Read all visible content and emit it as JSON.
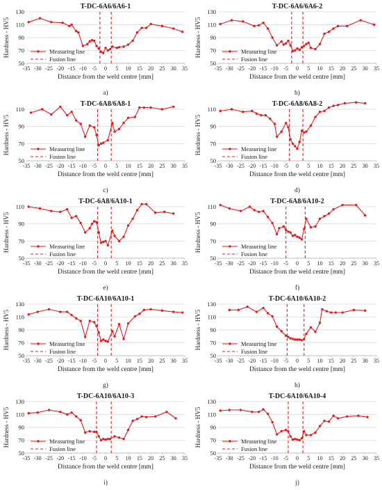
{
  "colors": {
    "series": "#e31a1c",
    "grid": "#d9d9d9",
    "axis": "#bfbfbf",
    "text": "#1a1a1a"
  },
  "common": {
    "ylabel": "Hardness - HV5",
    "xlabel": "Distance from the weld centre [mm]",
    "legend_measuring": "Measuring line",
    "legend_fusion": "Fusion line",
    "legend_placement": "bottom-left"
  },
  "chart_data": [
    {
      "type": "line",
      "title": "T-DC-6A6/6A6-1",
      "caption": "a)",
      "xlim": [
        -35,
        35
      ],
      "ylim": [
        50,
        130
      ],
      "xticks": [
        "-35",
        "-30",
        "-25",
        "-20",
        "-15",
        "-10",
        "-5",
        "0",
        "5",
        "10",
        "15",
        "20",
        "25",
        "30",
        "35"
      ],
      "yticks": [
        "50",
        "70",
        "90",
        "110",
        "130"
      ],
      "fusion_lines": [
        -2.5,
        2.5
      ],
      "grid": true,
      "series": [
        {
          "name": "Measuring line",
          "x": [
            -34,
            -29,
            -24,
            -19,
            -16,
            -15,
            -13,
            -12,
            -10,
            -8,
            -7,
            -6,
            -5,
            -4,
            -3,
            -2,
            -1,
            0,
            1,
            2,
            3,
            5,
            6,
            8,
            10,
            12,
            14,
            16,
            18,
            20,
            25,
            30,
            34
          ],
          "y": [
            114,
            120,
            114,
            113,
            108,
            110,
            100,
            98,
            77,
            80,
            84,
            86,
            85,
            77,
            73,
            68,
            66,
            74,
            70,
            72,
            76,
            74,
            75,
            76,
            79,
            85,
            98,
            105,
            105,
            111,
            108,
            104,
            99
          ]
        }
      ]
    },
    {
      "type": "line",
      "title": "T-DC-6A6/6A6-2",
      "caption": "b)",
      "xlim": [
        -35,
        35
      ],
      "ylim": [
        50,
        130
      ],
      "xticks": [
        "-35",
        "-30",
        "-25",
        "-20",
        "-15",
        "-10",
        "-5",
        "0",
        "5",
        "10",
        "15",
        "20",
        "25",
        "30",
        "35"
      ],
      "yticks": [
        "50",
        "70",
        "90",
        "110",
        "130"
      ],
      "fusion_lines": [
        -2.5,
        2.5
      ],
      "grid": true,
      "series": [
        {
          "name": "Measuring line",
          "x": [
            -34,
            -29,
            -24,
            -19,
            -17,
            -15,
            -13,
            -11,
            -9,
            -7,
            -6,
            -5,
            -4,
            -3,
            -2,
            -1,
            0,
            1,
            2,
            3,
            4,
            5,
            6,
            8,
            10,
            12,
            14,
            16,
            18,
            22,
            28,
            34
          ],
          "y": [
            111,
            117,
            115,
            108,
            109,
            113,
            104,
            90,
            78,
            84,
            79,
            81,
            85,
            78,
            69,
            70,
            73,
            71,
            75,
            77,
            80,
            82,
            74,
            72,
            80,
            96,
            99,
            104,
            108,
            108,
            117,
            110
          ]
        }
      ]
    },
    {
      "type": "line",
      "title": "T-DC-6A8/6A8-1",
      "caption": "c)",
      "xlim": [
        -35,
        35
      ],
      "ylim": [
        50,
        110
      ],
      "xticks": [
        "-35",
        "-30",
        "-25",
        "-20",
        "-15",
        "-10",
        "-5",
        "0",
        "5",
        "10",
        "15",
        "20",
        "25",
        "30",
        "35"
      ],
      "yticks": [
        "50",
        "70",
        "90",
        "110"
      ],
      "fusion_lines": [
        -3.5,
        2.5
      ],
      "grid": true,
      "series": [
        {
          "name": "Measuring line",
          "x": [
            -33,
            -28,
            -24,
            -20,
            -17,
            -15,
            -13,
            -11,
            -9,
            -7,
            -5,
            -4,
            -3,
            -2,
            -1,
            1,
            3,
            4,
            6,
            8,
            10,
            13,
            15,
            17,
            20,
            25,
            30
          ],
          "y": [
            106,
            110,
            104,
            113,
            103,
            107,
            97,
            93,
            78,
            91,
            89,
            80,
            68,
            70,
            71,
            74,
            94,
            84,
            87,
            94,
            100,
            101,
            112,
            112,
            112,
            110,
            113
          ]
        }
      ]
    },
    {
      "type": "line",
      "title": "T-DC-6A8/6A8-2",
      "caption": "d)",
      "xlim": [
        -35,
        35
      ],
      "ylim": [
        50,
        110
      ],
      "xticks": [
        "-35",
        "-30",
        "-25",
        "-20",
        "-15",
        "-10",
        "-5",
        "0",
        "5",
        "10",
        "15",
        "20",
        "25",
        "30",
        "35"
      ],
      "yticks": [
        "50",
        "70",
        "90",
        "110"
      ],
      "fusion_lines": [
        -3.5,
        2.5
      ],
      "grid": true,
      "series": [
        {
          "name": "Measuring line",
          "x": [
            -34,
            -29,
            -24,
            -20,
            -18,
            -16,
            -14,
            -12,
            -10,
            -9,
            -7,
            -5,
            -4,
            -3,
            -2,
            -1,
            0,
            1,
            2,
            3,
            4,
            6,
            8,
            10,
            12,
            14,
            16,
            18,
            21,
            26,
            30
          ],
          "y": [
            108,
            110,
            107,
            108,
            105,
            103,
            103,
            99,
            93,
            78,
            84,
            94,
            89,
            75,
            70,
            67,
            64,
            72,
            85,
            83,
            84,
            91,
            101,
            107,
            108,
            112,
            114,
            115,
            117,
            118,
            117
          ]
        }
      ]
    },
    {
      "type": "line",
      "title": "T-DC-6A8/6A10-1",
      "caption": "e)",
      "xlim": [
        -35,
        35
      ],
      "ylim": [
        50,
        110
      ],
      "xticks": [
        "-35",
        "-30",
        "-25",
        "-20",
        "-15",
        "-10",
        "-5",
        "0",
        "5",
        "10",
        "15",
        "20",
        "25",
        "30",
        "35"
      ],
      "yticks": [
        "50",
        "70",
        "90",
        "110"
      ],
      "fusion_lines": [
        -3.5,
        2.5
      ],
      "grid": true,
      "series": [
        {
          "name": "Measuring line",
          "x": [
            -34,
            -29,
            -24,
            -20,
            -17,
            -15,
            -13,
            -11,
            -9,
            -7,
            -6,
            -5,
            -4,
            -3,
            -2,
            -1,
            0,
            1,
            3,
            4,
            6,
            8,
            10,
            12,
            14,
            16,
            18,
            22,
            26,
            30
          ],
          "y": [
            110,
            108,
            105,
            104,
            107,
            97,
            99,
            91,
            80,
            85,
            90,
            93,
            92,
            80,
            68,
            69,
            70,
            65,
            82,
            76,
            70,
            75,
            88,
            96,
            106,
            113,
            113,
            103,
            104,
            102
          ]
        }
      ]
    },
    {
      "type": "line",
      "title": "T-DC-6A8/6A10-2",
      "caption": "f)",
      "xlim": [
        -35,
        35
      ],
      "ylim": [
        50,
        110
      ],
      "xticks": [
        "-35",
        "-30",
        "-25",
        "-20",
        "-15",
        "-10",
        "-5",
        "0",
        "5",
        "10",
        "15",
        "20",
        "25",
        "30",
        "35"
      ],
      "yticks": [
        "50",
        "70",
        "90",
        "110"
      ],
      "fusion_lines": [
        -5,
        3.5
      ],
      "grid": true,
      "series": [
        {
          "name": "Measuring line",
          "x": [
            -34,
            -30,
            -25,
            -21,
            -19,
            -17,
            -15,
            -13,
            -11,
            -9,
            -8,
            -6,
            -5,
            -4,
            -3,
            -2,
            -1,
            0,
            1,
            2,
            3,
            4,
            6,
            8,
            10,
            12,
            14,
            16,
            20,
            26,
            30
          ],
          "y": [
            112,
            108,
            105,
            110,
            106,
            104,
            105,
            98,
            91,
            78,
            85,
            87,
            83,
            81,
            80,
            76,
            77,
            75,
            74,
            72,
            84,
            96,
            86,
            87,
            96,
            99,
            102,
            107,
            112,
            112,
            100
          ]
        }
      ]
    },
    {
      "type": "line",
      "title": "T-DC-6A10/6A10-1",
      "caption": "g)",
      "xlim": [
        -35,
        35
      ],
      "ylim": [
        50,
        130
      ],
      "xticks": [
        "-35",
        "-30",
        "-25",
        "-20",
        "-15",
        "-10",
        "-5",
        "0",
        "5",
        "10",
        "15",
        "20",
        "25",
        "30",
        "35"
      ],
      "yticks": [
        "50",
        "70",
        "90",
        "110",
        "130"
      ],
      "fusion_lines": [
        -3.5,
        2.5
      ],
      "grid": true,
      "series": [
        {
          "name": "Measuring line",
          "x": [
            -34,
            -30,
            -25,
            -20,
            -17,
            -15,
            -13,
            -11,
            -9,
            -7,
            -5,
            -4,
            -3,
            -2,
            -1,
            0,
            1,
            3,
            4,
            6,
            8,
            10,
            13,
            15,
            17,
            20,
            25,
            30,
            34
          ],
          "y": [
            114,
            118,
            122,
            118,
            118,
            113,
            108,
            104,
            79,
            104,
            102,
            96,
            86,
            73,
            75,
            73,
            72,
            88,
            80,
            99,
            76,
            100,
            111,
            115,
            121,
            122,
            120,
            118,
            117
          ]
        }
      ]
    },
    {
      "type": "line",
      "title": "T-DC-6A10/6A10-2",
      "caption": "h)",
      "xlim": [
        -35,
        35
      ],
      "ylim": [
        50,
        130
      ],
      "xticks": [
        "-35",
        "-30",
        "-25",
        "-20",
        "-15",
        "-10",
        "-5",
        "0",
        "5",
        "10",
        "15",
        "20",
        "25",
        "30",
        "35"
      ],
      "yticks": [
        "50",
        "70",
        "90",
        "110",
        "130"
      ],
      "fusion_lines": [
        -4.5,
        3
      ],
      "grid": true,
      "series": [
        {
          "name": "Measuring line",
          "x": [
            -30,
            -26,
            -22,
            -18,
            -15,
            -13,
            -11,
            -9,
            -7,
            -5,
            -4,
            -3,
            -2,
            -1,
            0,
            1,
            2,
            3,
            4,
            6,
            8,
            10,
            11,
            13,
            15,
            17,
            20,
            25,
            30
          ],
          "y": [
            121,
            121,
            126,
            118,
            124,
            116,
            111,
            95,
            88,
            81,
            79,
            77,
            76,
            75,
            75,
            75,
            74,
            76,
            84,
            94,
            87,
            101,
            122,
            119,
            117,
            117,
            117,
            121,
            120
          ]
        }
      ]
    },
    {
      "type": "line",
      "title": "T-DC-6A10/6A10-3",
      "caption": "i)",
      "xlim": [
        -35,
        35
      ],
      "ylim": [
        50,
        130
      ],
      "xticks": [
        "-35",
        "-30",
        "-25",
        "-20",
        "-15",
        "-10",
        "-5",
        "0",
        "5",
        "10",
        "15",
        "20",
        "25",
        "30",
        "35"
      ],
      "yticks": [
        "50",
        "70",
        "90",
        "110",
        "130"
      ],
      "fusion_lines": [
        -4,
        2.5
      ],
      "grid": true,
      "series": [
        {
          "name": "Measuring line",
          "x": [
            -34,
            -30,
            -25,
            -20,
            -17,
            -15,
            -13,
            -11,
            -9,
            -7,
            -5,
            -4,
            -3,
            -2,
            -1,
            0,
            1,
            2,
            4,
            6,
            8,
            10,
            12,
            14,
            16,
            18,
            22,
            27,
            31
          ],
          "y": [
            112,
            113,
            117,
            114,
            110,
            113,
            107,
            101,
            82,
            84,
            83,
            83,
            76,
            70,
            72,
            71,
            72,
            72,
            76,
            74,
            72,
            86,
            100,
            103,
            107,
            106,
            107,
            114,
            104
          ]
        }
      ]
    },
    {
      "type": "line",
      "title": "T-DC-6A10/6A10-4",
      "caption": "j)",
      "xlim": [
        -35,
        35
      ],
      "ylim": [
        50,
        130
      ],
      "xticks": [
        "-35",
        "-30",
        "-25",
        "-20",
        "-15",
        "-10",
        "-5",
        "0",
        "5",
        "10",
        "15",
        "20",
        "25",
        "30",
        "35"
      ],
      "yticks": [
        "50",
        "70",
        "90",
        "110",
        "130"
      ],
      "fusion_lines": [
        -4,
        2.5
      ],
      "grid": true,
      "series": [
        {
          "name": "Measuring line",
          "x": [
            -34,
            -30,
            -25,
            -20,
            -17,
            -15,
            -13,
            -11,
            -9,
            -7,
            -5,
            -4,
            -3,
            -2,
            -1,
            0,
            1,
            2,
            3,
            4,
            6,
            8,
            10,
            12,
            14,
            16,
            18,
            22,
            27,
            31
          ],
          "y": [
            116,
            117,
            117,
            114,
            114,
            118,
            111,
            98,
            79,
            84,
            86,
            84,
            76,
            71,
            72,
            71,
            70,
            73,
            84,
            78,
            78,
            82,
            92,
            100,
            99,
            108,
            104,
            107,
            108,
            106
          ]
        }
      ]
    }
  ]
}
